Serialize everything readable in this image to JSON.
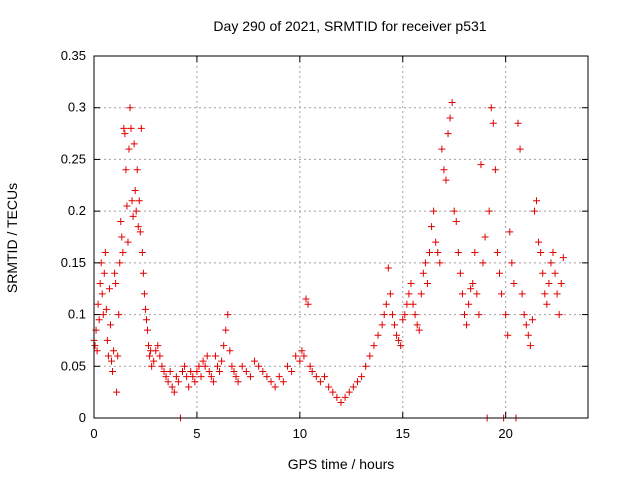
{
  "chart_data": {
    "type": "scatter",
    "title": "Day 290 of 2021, SRMTID for receiver p531",
    "xlabel": "GPS time / hours",
    "ylabel": "SRMTID / TECUs",
    "xlim": [
      0,
      24
    ],
    "ylim": [
      0,
      0.35
    ],
    "xticks": [
      0,
      5,
      10,
      15,
      20
    ],
    "xtick_labels": [
      "0",
      "5",
      "10",
      "15",
      "20"
    ],
    "yticks": [
      0,
      0.05,
      0.1,
      0.15,
      0.2,
      0.25,
      0.3,
      0.35
    ],
    "ytick_labels": [
      "0",
      "0.05",
      "0.1",
      "0.15",
      "0.2",
      "0.25",
      "0.3",
      "0.35"
    ],
    "grid": true,
    "marker": "plus",
    "color": "#e00000",
    "series": [
      {
        "name": "SRMTID",
        "points": [
          [
            0.0,
            0.075
          ],
          [
            0.05,
            0.07
          ],
          [
            0.1,
            0.085
          ],
          [
            0.15,
            0.065
          ],
          [
            0.2,
            0.11
          ],
          [
            0.25,
            0.095
          ],
          [
            0.3,
            0.13
          ],
          [
            0.35,
            0.15
          ],
          [
            0.4,
            0.12
          ],
          [
            0.45,
            0.1
          ],
          [
            0.5,
            0.14
          ],
          [
            0.55,
            0.16
          ],
          [
            0.6,
            0.105
          ],
          [
            0.65,
            0.075
          ],
          [
            0.7,
            0.06
          ],
          [
            0.75,
            0.125
          ],
          [
            0.8,
            0.09
          ],
          [
            0.85,
            0.055
          ],
          [
            0.9,
            0.045
          ],
          [
            0.95,
            0.065
          ],
          [
            1.0,
            0.14
          ],
          [
            1.05,
            0.13
          ],
          [
            1.1,
            0.025
          ],
          [
            1.15,
            0.06
          ],
          [
            1.2,
            0.1
          ],
          [
            1.25,
            0.15
          ],
          [
            1.3,
            0.19
          ],
          [
            1.35,
            0.175
          ],
          [
            1.4,
            0.16
          ],
          [
            1.45,
            0.28
          ],
          [
            1.5,
            0.275
          ],
          [
            1.55,
            0.24
          ],
          [
            1.6,
            0.205
          ],
          [
            1.65,
            0.17
          ],
          [
            1.7,
            0.26
          ],
          [
            1.75,
            0.3
          ],
          [
            1.8,
            0.28
          ],
          [
            1.85,
            0.21
          ],
          [
            1.9,
            0.195
          ],
          [
            1.95,
            0.265
          ],
          [
            2.0,
            0.22
          ],
          [
            2.05,
            0.2
          ],
          [
            2.1,
            0.24
          ],
          [
            2.15,
            0.185
          ],
          [
            2.2,
            0.21
          ],
          [
            2.25,
            0.18
          ],
          [
            2.3,
            0.28
          ],
          [
            2.35,
            0.16
          ],
          [
            2.4,
            0.14
          ],
          [
            2.45,
            0.12
          ],
          [
            2.5,
            0.105
          ],
          [
            2.55,
            0.095
          ],
          [
            2.6,
            0.085
          ],
          [
            2.65,
            0.07
          ],
          [
            2.7,
            0.06
          ],
          [
            2.75,
            0.065
          ],
          [
            2.8,
            0.05
          ],
          [
            2.9,
            0.055
          ],
          [
            3.0,
            0.065
          ],
          [
            3.1,
            0.07
          ],
          [
            3.2,
            0.06
          ],
          [
            3.3,
            0.05
          ],
          [
            3.4,
            0.045
          ],
          [
            3.5,
            0.04
          ],
          [
            3.6,
            0.035
          ],
          [
            3.7,
            0.045
          ],
          [
            3.8,
            0.03
          ],
          [
            3.9,
            0.025
          ],
          [
            4.0,
            0.04
          ],
          [
            4.1,
            0.035
          ],
          [
            4.2,
            0.0
          ],
          [
            4.3,
            0.045
          ],
          [
            4.4,
            0.05
          ],
          [
            4.5,
            0.04
          ],
          [
            4.6,
            0.03
          ],
          [
            4.7,
            0.045
          ],
          [
            4.8,
            0.04
          ],
          [
            4.9,
            0.035
          ],
          [
            5.0,
            0.045
          ],
          [
            5.1,
            0.05
          ],
          [
            5.2,
            0.04
          ],
          [
            5.3,
            0.055
          ],
          [
            5.4,
            0.05
          ],
          [
            5.5,
            0.06
          ],
          [
            5.6,
            0.045
          ],
          [
            5.7,
            0.04
          ],
          [
            5.8,
            0.035
          ],
          [
            5.9,
            0.06
          ],
          [
            6.0,
            0.05
          ],
          [
            6.1,
            0.045
          ],
          [
            6.2,
            0.055
          ],
          [
            6.3,
            0.07
          ],
          [
            6.4,
            0.085
          ],
          [
            6.5,
            0.1
          ],
          [
            6.6,
            0.065
          ],
          [
            6.7,
            0.05
          ],
          [
            6.8,
            0.045
          ],
          [
            6.9,
            0.04
          ],
          [
            7.0,
            0.035
          ],
          [
            7.2,
            0.05
          ],
          [
            7.4,
            0.045
          ],
          [
            7.6,
            0.04
          ],
          [
            7.8,
            0.055
          ],
          [
            8.0,
            0.05
          ],
          [
            8.2,
            0.045
          ],
          [
            8.4,
            0.04
          ],
          [
            8.6,
            0.035
          ],
          [
            8.8,
            0.03
          ],
          [
            9.0,
            0.04
          ],
          [
            9.2,
            0.035
          ],
          [
            9.4,
            0.05
          ],
          [
            9.6,
            0.045
          ],
          [
            9.8,
            0.06
          ],
          [
            10.0,
            0.055
          ],
          [
            10.1,
            0.065
          ],
          [
            10.2,
            0.06
          ],
          [
            10.3,
            0.115
          ],
          [
            10.4,
            0.11
          ],
          [
            10.5,
            0.05
          ],
          [
            10.6,
            0.045
          ],
          [
            10.8,
            0.04
          ],
          [
            11.0,
            0.035
          ],
          [
            11.2,
            0.04
          ],
          [
            11.4,
            0.03
          ],
          [
            11.6,
            0.025
          ],
          [
            11.8,
            0.02
          ],
          [
            12.0,
            0.015
          ],
          [
            12.2,
            0.02
          ],
          [
            12.4,
            0.025
          ],
          [
            12.6,
            0.03
          ],
          [
            12.8,
            0.035
          ],
          [
            13.0,
            0.04
          ],
          [
            13.2,
            0.05
          ],
          [
            13.4,
            0.06
          ],
          [
            13.6,
            0.07
          ],
          [
            13.8,
            0.08
          ],
          [
            14.0,
            0.09
          ],
          [
            14.1,
            0.1
          ],
          [
            14.2,
            0.11
          ],
          [
            14.3,
            0.145
          ],
          [
            14.4,
            0.12
          ],
          [
            14.5,
            0.1
          ],
          [
            14.6,
            0.09
          ],
          [
            14.7,
            0.08
          ],
          [
            14.8,
            0.075
          ],
          [
            14.9,
            0.07
          ],
          [
            15.0,
            0.095
          ],
          [
            15.1,
            0.1
          ],
          [
            15.2,
            0.11
          ],
          [
            15.3,
            0.12
          ],
          [
            15.4,
            0.13
          ],
          [
            15.5,
            0.11
          ],
          [
            15.6,
            0.1
          ],
          [
            15.7,
            0.09
          ],
          [
            15.8,
            0.085
          ],
          [
            15.9,
            0.12
          ],
          [
            16.0,
            0.14
          ],
          [
            16.1,
            0.15
          ],
          [
            16.2,
            0.13
          ],
          [
            16.3,
            0.16
          ],
          [
            16.4,
            0.185
          ],
          [
            16.5,
            0.2
          ],
          [
            16.6,
            0.17
          ],
          [
            16.7,
            0.16
          ],
          [
            16.8,
            0.15
          ],
          [
            16.9,
            0.26
          ],
          [
            17.0,
            0.24
          ],
          [
            17.1,
            0.23
          ],
          [
            17.2,
            0.275
          ],
          [
            17.3,
            0.29
          ],
          [
            17.4,
            0.305
          ],
          [
            17.5,
            0.2
          ],
          [
            17.6,
            0.19
          ],
          [
            17.7,
            0.16
          ],
          [
            17.8,
            0.14
          ],
          [
            17.9,
            0.12
          ],
          [
            18.0,
            0.1
          ],
          [
            18.1,
            0.09
          ],
          [
            18.2,
            0.11
          ],
          [
            18.3,
            0.125
          ],
          [
            18.4,
            0.13
          ],
          [
            18.5,
            0.16
          ],
          [
            18.6,
            0.12
          ],
          [
            18.7,
            0.1
          ],
          [
            18.8,
            0.245
          ],
          [
            18.9,
            0.15
          ],
          [
            19.0,
            0.175
          ],
          [
            19.1,
            0.0
          ],
          [
            19.2,
            0.2
          ],
          [
            19.3,
            0.3
          ],
          [
            19.4,
            0.285
          ],
          [
            19.5,
            0.24
          ],
          [
            19.6,
            0.16
          ],
          [
            19.7,
            0.14
          ],
          [
            19.8,
            0.12
          ],
          [
            19.9,
            0.0
          ],
          [
            20.0,
            0.1
          ],
          [
            20.1,
            0.08
          ],
          [
            20.2,
            0.18
          ],
          [
            20.3,
            0.15
          ],
          [
            20.4,
            0.13
          ],
          [
            20.5,
            0.0
          ],
          [
            20.6,
            0.285
          ],
          [
            20.7,
            0.26
          ],
          [
            20.8,
            0.12
          ],
          [
            20.9,
            0.1
          ],
          [
            21.0,
            0.09
          ],
          [
            21.1,
            0.08
          ],
          [
            21.2,
            0.07
          ],
          [
            21.3,
            0.095
          ],
          [
            21.4,
            0.2
          ],
          [
            21.5,
            0.21
          ],
          [
            21.6,
            0.17
          ],
          [
            21.7,
            0.16
          ],
          [
            21.8,
            0.14
          ],
          [
            21.9,
            0.12
          ],
          [
            22.0,
            0.11
          ],
          [
            22.1,
            0.13
          ],
          [
            22.2,
            0.15
          ],
          [
            22.3,
            0.16
          ],
          [
            22.4,
            0.14
          ],
          [
            22.5,
            0.12
          ],
          [
            22.6,
            0.1
          ],
          [
            22.7,
            0.13
          ],
          [
            22.8,
            0.155
          ]
        ]
      }
    ]
  }
}
